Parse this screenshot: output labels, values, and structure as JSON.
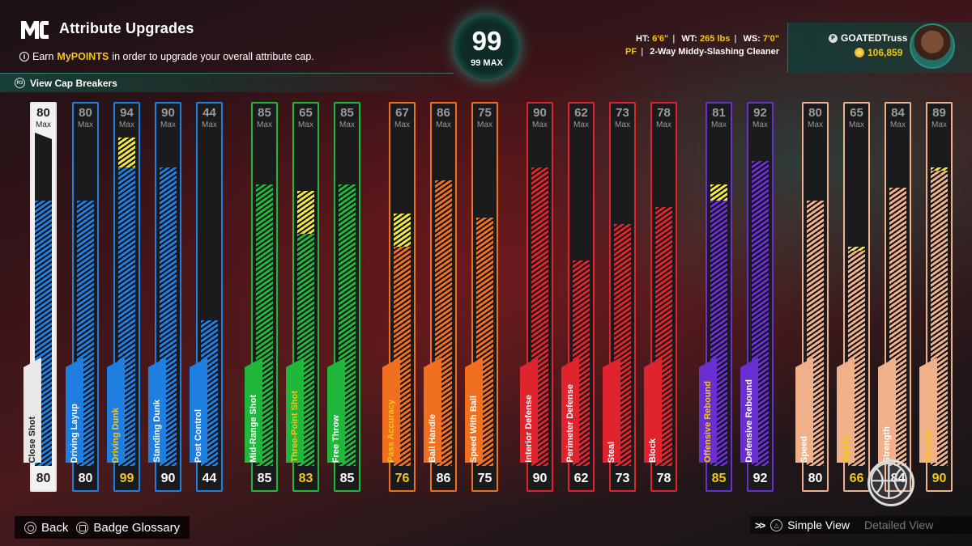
{
  "header": {
    "title": "Attribute Upgrades",
    "subtitle_pre": "Earn",
    "subtitle_highlight": "MyPOINTS",
    "subtitle_post": "in order to upgrade your overall attribute cap.",
    "cap_breakers_label": "View Cap Breakers",
    "cap_breakers_icon_text": "R3"
  },
  "overall": {
    "value": "99",
    "max_label": "99 MAX"
  },
  "player": {
    "ht_label": "HT:",
    "ht_value": "6'6\"",
    "wt_label": "WT:",
    "wt_value": "265 lbs",
    "ws_label": "WS:",
    "ws_value": "7'0\"",
    "position": "PF",
    "archetype": "2-Way Middy-Slashing Cleaner",
    "gamertag": "GOATEDTruss",
    "vc": "106,859"
  },
  "colors": {
    "finishing": "#1e7fe0",
    "shooting": "#1fb83a",
    "playmaking": "#f07020",
    "defense": "#e0242e",
    "rebounding": "#6a2fd0",
    "physicals": "#f0b08a",
    "upgrade": "#f0e640",
    "boost_text": "#f5c518"
  },
  "max_label": "Max",
  "attributes": [
    {
      "name": "Close Shot",
      "max": 80,
      "value": 80,
      "upgrade_to": 80,
      "group": "finishing",
      "boost": false,
      "active": true
    },
    {
      "name": "Driving Layup",
      "max": 80,
      "value": 80,
      "upgrade_to": 80,
      "group": "finishing",
      "boost": false
    },
    {
      "name": "Driving Dunk",
      "max": 94,
      "value": 90,
      "upgrade_to": 99,
      "group": "finishing",
      "boost": true
    },
    {
      "name": "Standing Dunk",
      "max": 90,
      "value": 90,
      "upgrade_to": 90,
      "group": "finishing",
      "boost": false
    },
    {
      "name": "Post Control",
      "max": 44,
      "value": 44,
      "upgrade_to": 44,
      "group": "finishing",
      "boost": false
    },
    {
      "name": "Mid-Range Shot",
      "max": 85,
      "value": 85,
      "upgrade_to": 85,
      "group": "shooting",
      "boost": false
    },
    {
      "name": "Three-Point Shot",
      "max": 65,
      "value": 70,
      "upgrade_to": 83,
      "group": "shooting",
      "boost": true
    },
    {
      "name": "Free Throw",
      "max": 85,
      "value": 85,
      "upgrade_to": 85,
      "group": "shooting",
      "boost": false
    },
    {
      "name": "Pass Accuracy",
      "max": 67,
      "value": 66,
      "upgrade_to": 76,
      "group": "playmaking",
      "boost": true
    },
    {
      "name": "Ball Handle",
      "max": 86,
      "value": 86,
      "upgrade_to": 86,
      "group": "playmaking",
      "boost": false
    },
    {
      "name": "Speed With Ball",
      "max": 75,
      "value": 75,
      "upgrade_to": 75,
      "group": "playmaking",
      "boost": false
    },
    {
      "name": "Interior Defense",
      "max": 90,
      "value": 90,
      "upgrade_to": 90,
      "group": "defense",
      "boost": false
    },
    {
      "name": "Perimeter Defense",
      "max": 62,
      "value": 62,
      "upgrade_to": 62,
      "group": "defense",
      "boost": false
    },
    {
      "name": "Steal",
      "max": 73,
      "value": 73,
      "upgrade_to": 73,
      "group": "defense",
      "boost": false
    },
    {
      "name": "Block",
      "max": 78,
      "value": 78,
      "upgrade_to": 78,
      "group": "defense",
      "boost": false
    },
    {
      "name": "Offensive Rebound",
      "max": 81,
      "value": 80,
      "upgrade_to": 85,
      "group": "rebounding",
      "boost": true
    },
    {
      "name": "Defensive Rebound",
      "max": 92,
      "value": 92,
      "upgrade_to": 92,
      "group": "rebounding",
      "boost": false
    },
    {
      "name": "Speed",
      "max": 80,
      "value": 80,
      "upgrade_to": 80,
      "group": "physicals",
      "boost": false
    },
    {
      "name": "Agility",
      "max": 65,
      "value": 65,
      "upgrade_to": 66,
      "group": "physicals",
      "boost": true
    },
    {
      "name": "Strength",
      "max": 84,
      "value": 84,
      "upgrade_to": 84,
      "group": "physicals",
      "boost": false
    },
    {
      "name": "Vertical",
      "max": 89,
      "value": 89,
      "upgrade_to": 90,
      "group": "physicals",
      "boost": true
    }
  ],
  "footer": {
    "back_label": "Back",
    "glossary_label": "Badge Glossary",
    "simple_view_label": "Simple View",
    "detailed_view_label": "Detailed View"
  }
}
